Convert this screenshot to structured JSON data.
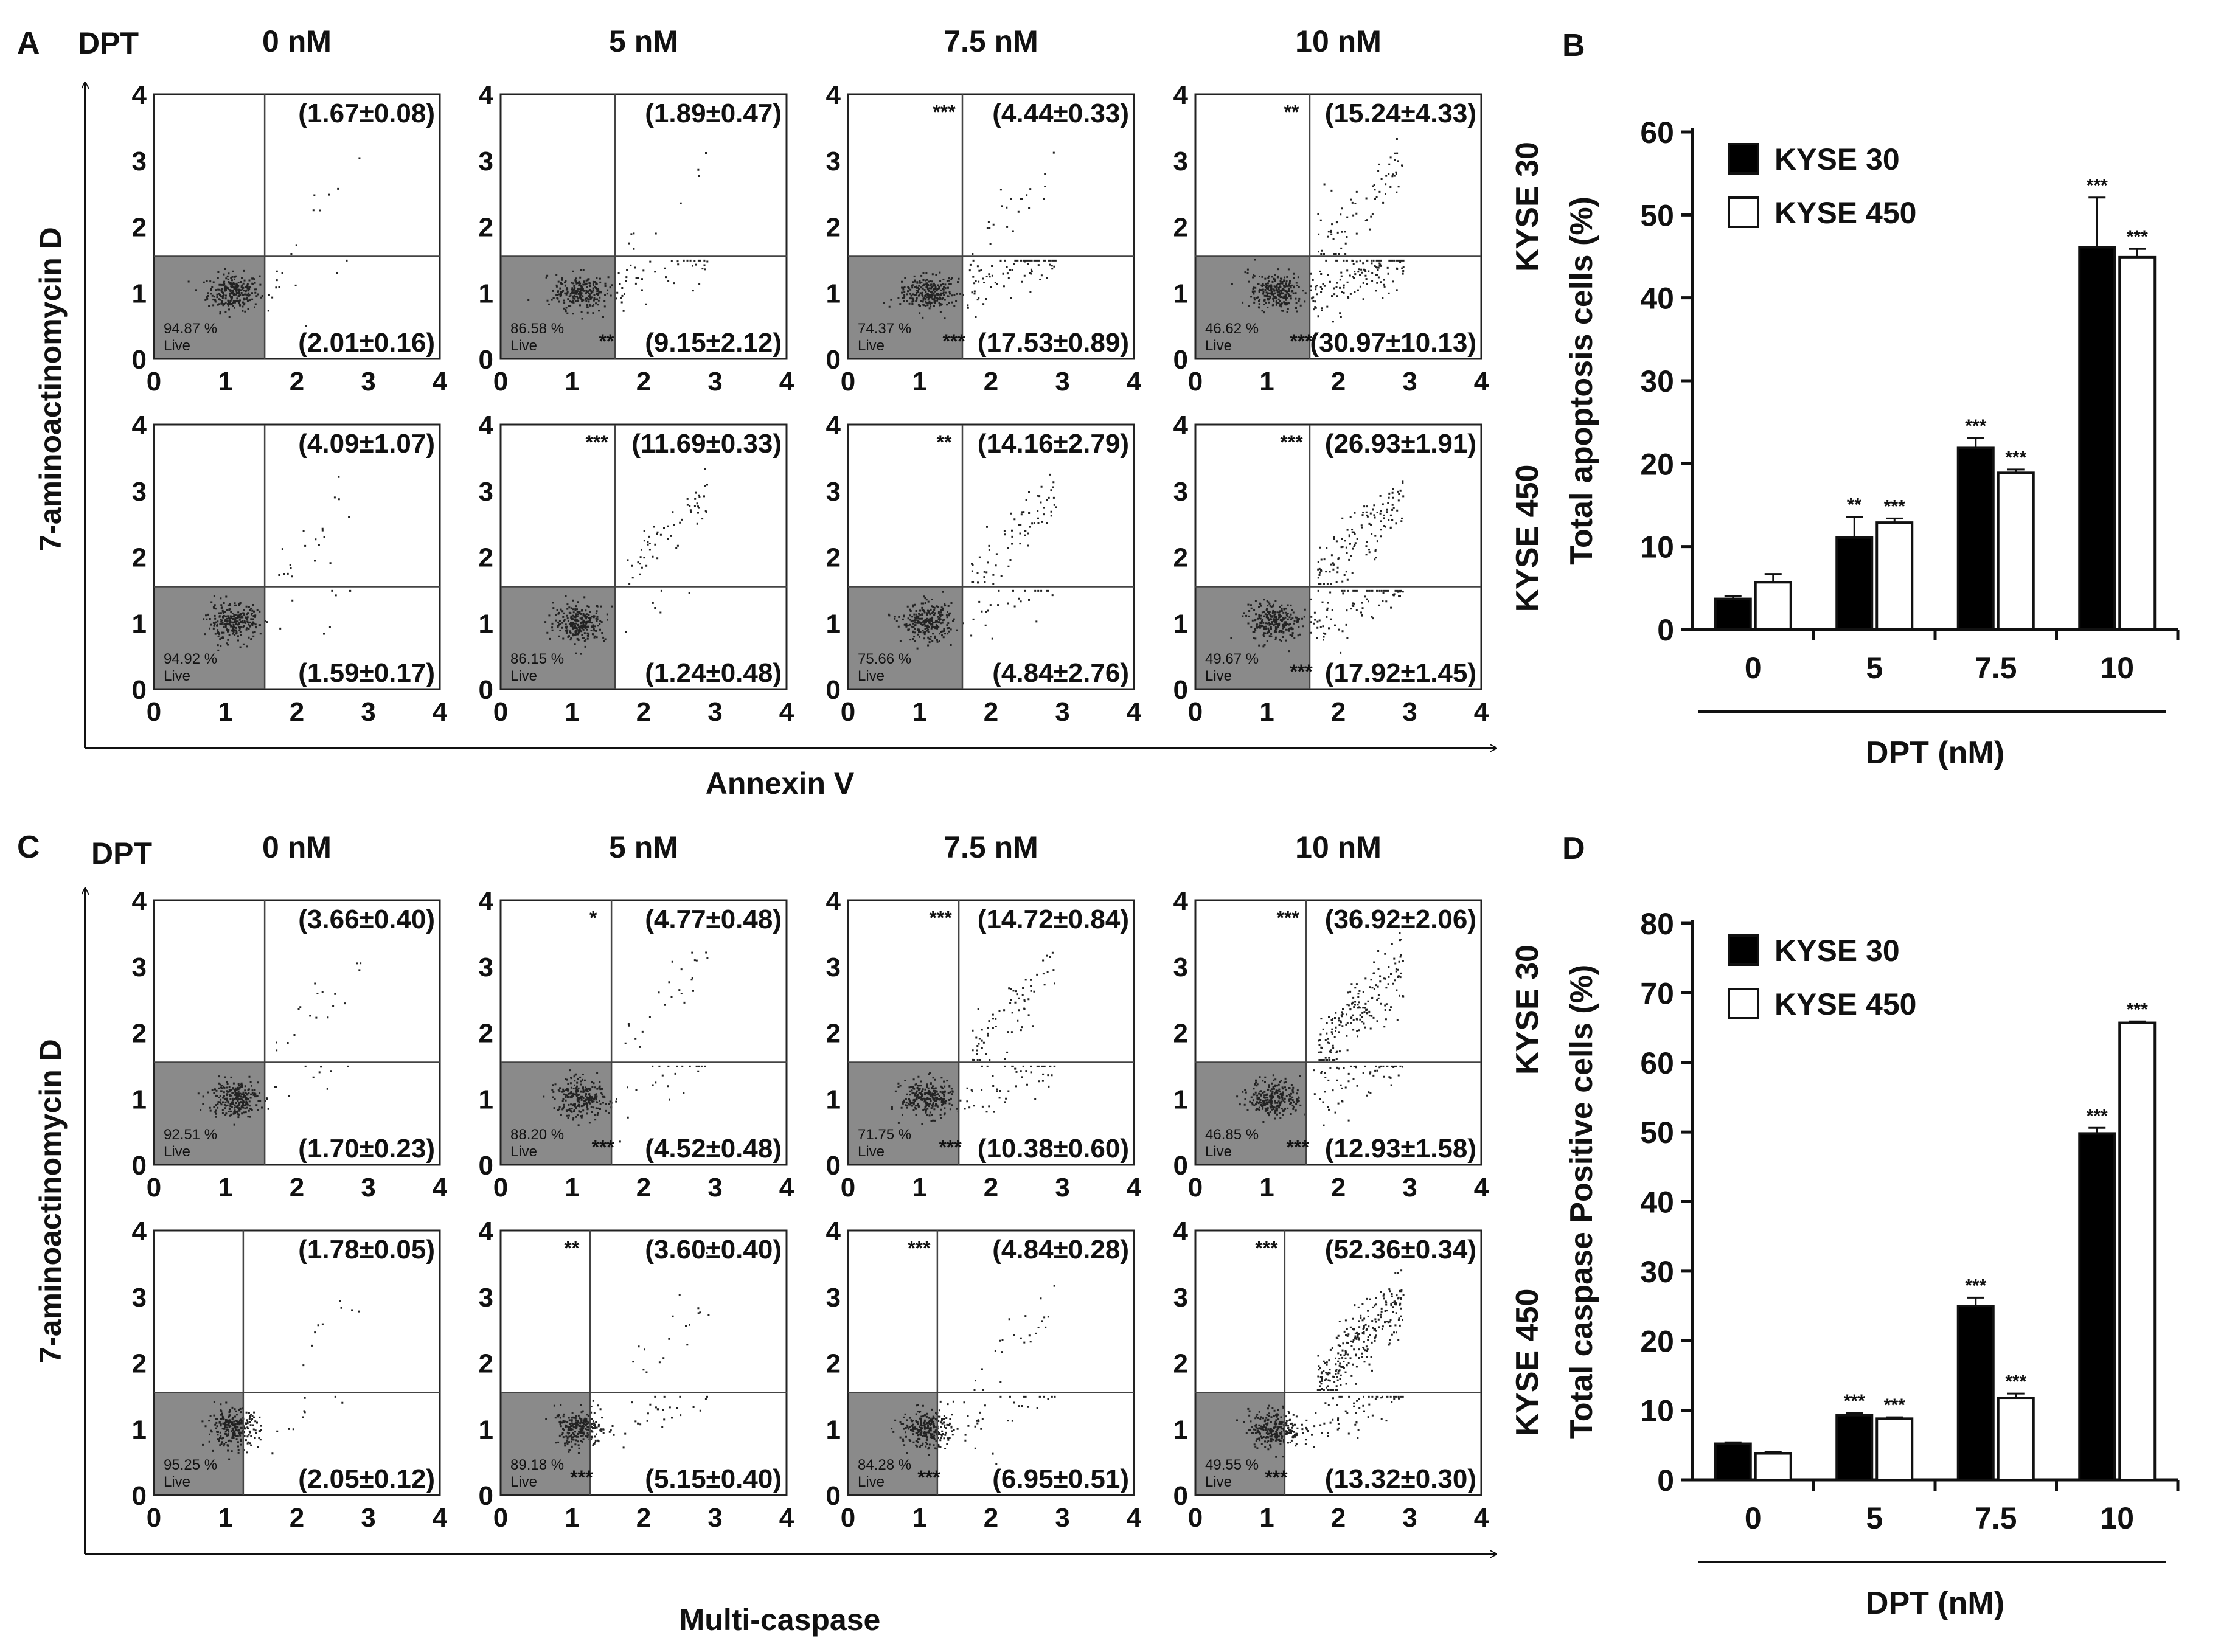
{
  "panel_labels": {
    "a": "A",
    "b": "B",
    "c": "C",
    "d": "D"
  },
  "flow_common": {
    "dpt_label": "DPT",
    "yaxis_label": "7-aminoactinomycin D",
    "ticks": [
      "0",
      "1",
      "2",
      "3",
      "4"
    ],
    "live_label": "Live"
  },
  "panel_a": {
    "xaxis_label": "Annexin V",
    "conc": [
      "0 nM",
      "5 nM",
      "7.5 nM",
      "10 nM"
    ],
    "row_labels": [
      "KYSE 30",
      "KYSE 450"
    ],
    "plots": [
      [
        {
          "upper": "(1.67±0.08)",
          "lower": "(2.01±0.16)",
          "live": "94.87 %",
          "sig_upper": "",
          "sig_lower": ""
        },
        {
          "upper": "(1.89±0.47)",
          "lower": "(9.15±2.12)",
          "live": "86.58 %",
          "sig_upper": "",
          "sig_lower": "**"
        },
        {
          "upper": "(4.44±0.33)",
          "lower": "(17.53±0.89)",
          "live": "74.37 %",
          "sig_upper": "***",
          "sig_lower": "***"
        },
        {
          "upper": "(15.24±4.33)",
          "lower": "(30.97±10.13)",
          "live": "46.62 %",
          "sig_upper": "**",
          "sig_lower": "***"
        }
      ],
      [
        {
          "upper": "(4.09±1.07)",
          "lower": "(1.59±0.17)",
          "live": "94.92 %",
          "sig_upper": "",
          "sig_lower": ""
        },
        {
          "upper": "(11.69±0.33)",
          "lower": "(1.24±0.48)",
          "live": "86.15 %",
          "sig_upper": "***",
          "sig_lower": ""
        },
        {
          "upper": "(14.16±2.79)",
          "lower": "(4.84±2.76)",
          "live": "75.66 %",
          "sig_upper": "**",
          "sig_lower": ""
        },
        {
          "upper": "(26.93±1.91)",
          "lower": "(17.92±1.45)",
          "live": "49.67 %",
          "sig_upper": "***",
          "sig_lower": "***"
        }
      ]
    ]
  },
  "panel_c": {
    "xaxis_label": "Multi-caspase",
    "conc": [
      "0 nM",
      "5 nM",
      "7.5 nM",
      "10 nM"
    ],
    "row_labels": [
      "KYSE 30",
      "KYSE 450"
    ],
    "plots": [
      [
        {
          "upper": "(3.66±0.40)",
          "lower": "(1.70±0.23)",
          "live": "92.51 %",
          "sig_upper": "",
          "sig_lower": ""
        },
        {
          "upper": "(4.77±0.48)",
          "lower": "(4.52±0.48)",
          "live": "88.20 %",
          "sig_upper": "*",
          "sig_lower": "***"
        },
        {
          "upper": "(14.72±0.84)",
          "lower": "(10.38±0.60)",
          "live": "71.75 %",
          "sig_upper": "***",
          "sig_lower": "***"
        },
        {
          "upper": "(36.92±2.06)",
          "lower": "(12.93±1.58)",
          "live": "46.85 %",
          "sig_upper": "***",
          "sig_lower": "***"
        }
      ],
      [
        {
          "upper": "(1.78±0.05)",
          "lower": "(2.05±0.12)",
          "live": "95.25 %",
          "sig_upper": "",
          "sig_lower": ""
        },
        {
          "upper": "(3.60±0.40)",
          "lower": "(5.15±0.40)",
          "live": "89.18 %",
          "sig_upper": "**",
          "sig_lower": "***"
        },
        {
          "upper": "(4.84±0.28)",
          "lower": "(6.95±0.51)",
          "live": "84.28 %",
          "sig_upper": "***",
          "sig_lower": "***"
        },
        {
          "upper": "(52.36±0.34)",
          "lower": "(13.32±0.30)",
          "live": "49.55 %",
          "sig_upper": "***",
          "sig_lower": "***"
        }
      ]
    ]
  },
  "chart_data": [
    {
      "type": "bar",
      "title": "",
      "xlabel": "DPT (nM)",
      "ylabel": "Total apoptosis cells (%)",
      "categories": [
        "0",
        "5",
        "7.5",
        "10"
      ],
      "ylim": [
        0,
        60
      ],
      "yticks": [
        "0",
        "10",
        "20",
        "30",
        "40",
        "50",
        "60"
      ],
      "series": [
        {
          "name": "KYSE 30",
          "fill": "#000000",
          "values": [
            3.7,
            11.1,
            21.9,
            46.1
          ],
          "errors": [
            0.3,
            2.5,
            1.2,
            6.0
          ],
          "sig": [
            "",
            "**",
            "***",
            "***"
          ]
        },
        {
          "name": "KYSE 450",
          "fill": "#ffffff",
          "values": [
            5.7,
            12.9,
            18.9,
            44.9
          ],
          "errors": [
            1.0,
            0.5,
            0.4,
            1.0
          ],
          "sig": [
            "",
            "***",
            "***",
            "***"
          ]
        }
      ]
    },
    {
      "type": "bar",
      "title": "",
      "xlabel": "DPT (nM)",
      "ylabel": "Total caspase Positive cells (%)",
      "categories": [
        "0",
        "5",
        "7.5",
        "10"
      ],
      "ylim": [
        0,
        80
      ],
      "yticks": [
        "0",
        "10",
        "20",
        "30",
        "40",
        "50",
        "60",
        "70",
        "80"
      ],
      "series": [
        {
          "name": "KYSE 30",
          "fill": "#000000",
          "values": [
            5.2,
            9.3,
            25.0,
            49.8
          ],
          "errors": [
            0.2,
            0.3,
            1.2,
            0.8
          ],
          "sig": [
            "",
            "***",
            "***",
            "***"
          ]
        },
        {
          "name": "KYSE 450",
          "fill": "#ffffff",
          "values": [
            3.8,
            8.8,
            11.8,
            65.7
          ],
          "errors": [
            0.2,
            0.2,
            0.6,
            0.2
          ],
          "sig": [
            "",
            "***",
            "***",
            "***"
          ]
        }
      ]
    }
  ]
}
